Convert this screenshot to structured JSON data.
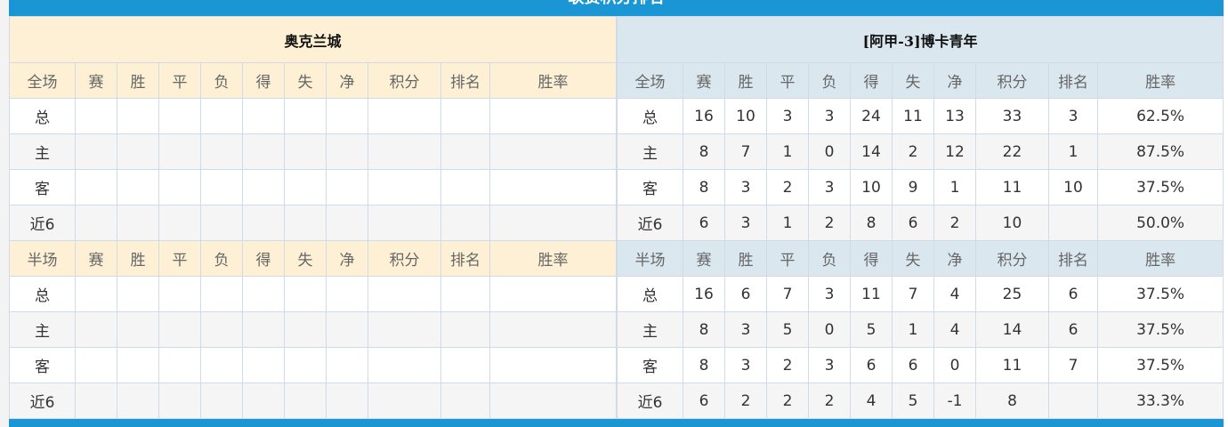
{
  "title": "联赛积分排名",
  "headers": {
    "full": [
      "全场",
      "赛",
      "胜",
      "平",
      "负",
      "得",
      "失",
      "净",
      "积分",
      "排名",
      "胜率"
    ],
    "half": [
      "半场",
      "赛",
      "胜",
      "平",
      "负",
      "得",
      "失",
      "净",
      "积分",
      "排名",
      "胜率"
    ]
  },
  "row_labels": [
    "总",
    "主",
    "客",
    "近6"
  ],
  "left": {
    "team": "奥克兰城",
    "full": [
      [],
      [],
      [],
      []
    ],
    "half": [
      [],
      [],
      [],
      []
    ]
  },
  "right": {
    "team": "[阿甲-3]博卡青年",
    "full": [
      [
        "16",
        "10",
        "3",
        "3",
        "24",
        "11",
        "13",
        "33",
        "3",
        "62.5%"
      ],
      [
        "8",
        "7",
        "1",
        "0",
        "14",
        "2",
        "12",
        "22",
        "1",
        "87.5%"
      ],
      [
        "8",
        "3",
        "2",
        "3",
        "10",
        "9",
        "1",
        "11",
        "10",
        "37.5%"
      ],
      [
        "6",
        "3",
        "1",
        "2",
        "8",
        "6",
        "2",
        "10",
        "",
        "50.0%"
      ]
    ],
    "half": [
      [
        "16",
        "6",
        "7",
        "3",
        "11",
        "7",
        "4",
        "25",
        "6",
        "37.5%"
      ],
      [
        "8",
        "3",
        "5",
        "0",
        "5",
        "1",
        "4",
        "14",
        "6",
        "37.5%"
      ],
      [
        "8",
        "3",
        "2",
        "3",
        "6",
        "6",
        "0",
        "11",
        "7",
        "37.5%"
      ],
      [
        "6",
        "2",
        "2",
        "2",
        "4",
        "5",
        "-1",
        "8",
        "",
        "33.3%"
      ]
    ]
  },
  "colors": {
    "accent": "#1a96d4",
    "points": "#e8412c",
    "rank": "#3a7fc6",
    "home": "#e62b2b",
    "away": "#3c4fd8"
  }
}
